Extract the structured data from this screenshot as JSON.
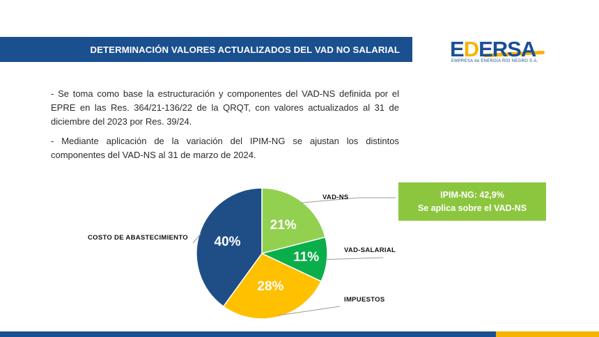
{
  "header": {
    "title": "DETERMINACIÓN VALORES ACTUALIZADOS DEL VAD NO SALARIAL"
  },
  "logo": {
    "name": "EDERSA",
    "tagline": "EMPRESA de ENERGÍA RÍO NEGRO S.A."
  },
  "body": {
    "paragraph1": "- Se toma como base la estructuración y componentes del VAD-NS definida por el EPRE en las Res. 364/21-136/22 de la QRQT, con valores actualizados al 31 de diciembre del 2023 por Res. 39/24.",
    "paragraph2": "- Mediante aplicación de la variación del IPIM-NG se ajustan los distintos componentes del VAD-NS al 31 de marzo de 2024."
  },
  "info_box": {
    "line1": "IPIM-NG: 42,9%",
    "line2": "Se aplica sobre el VAD-NS"
  },
  "colors": {
    "brand_blue": "#1a5090",
    "accent_yellow": "#f5b400",
    "info_green": "#8cc63f"
  },
  "chart_data": {
    "type": "pie",
    "title": "",
    "start_angle_deg": 0,
    "direction": "clockwise",
    "slices": [
      {
        "label": "VAD-NS",
        "value": 21,
        "value_label": "21%",
        "color": "#92d050"
      },
      {
        "label": "VAD-SALARIAL",
        "value": 11,
        "value_label": "11%",
        "color": "#0aae4a"
      },
      {
        "label": "IMPUESTOS",
        "value": 28,
        "value_label": "28%",
        "color": "#ffc000"
      },
      {
        "label": "COSTO DE ABASTECIMIENTO",
        "value": 40,
        "value_label": "40%",
        "color": "#1f4e87"
      }
    ]
  }
}
